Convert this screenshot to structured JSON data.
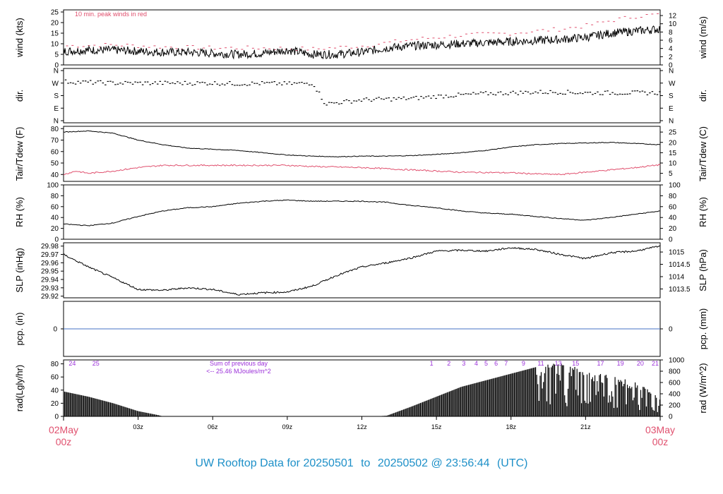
{
  "title_parts": {
    "prefix": "UW Rooftop Data for",
    "start": "20250501",
    "to": "to",
    "end": "20250502 @ 23:56:44",
    "tz": "(UTC)"
  },
  "colors": {
    "text": "#000000",
    "accent": "#e0506e",
    "blue": "#4472c4",
    "purple": "#9b30d9",
    "title": "#1e90c8"
  },
  "x_axis": {
    "start_label": "02May",
    "start_sub": "00z",
    "end_label": "03May",
    "end_sub": "00z",
    "ticks": [
      {
        "hour": 3,
        "label": "03z"
      },
      {
        "hour": 6,
        "label": "06z"
      },
      {
        "hour": 9,
        "label": "09z"
      },
      {
        "hour": 12,
        "label": "12z"
      },
      {
        "hour": 15,
        "label": "15z"
      },
      {
        "hour": 18,
        "label": "18z"
      },
      {
        "hour": 21,
        "label": "21z"
      }
    ]
  },
  "panels": {
    "wind": {
      "ylabel": "wind (kts)",
      "ylabel_right": "wind (m/s)",
      "note": "10 min. peak winds in red",
      "ylim": [
        0,
        26
      ],
      "yticks": [
        0,
        5,
        10,
        15,
        20,
        25
      ],
      "right_ticks": [
        0,
        2,
        4,
        6,
        8,
        10,
        12
      ]
    },
    "dir": {
      "ylabel": "dir.",
      "ylabel_right": "dir.",
      "ticks": [
        "N",
        "W",
        "S",
        "E",
        "N"
      ]
    },
    "temp": {
      "ylabel": "Tair/Tdew (F)",
      "ylabel_right": "Tair/Tdew (C)",
      "ylim": [
        34,
        82
      ],
      "yticks": [
        40,
        50,
        60,
        70,
        80
      ],
      "right_ticks": [
        5,
        10,
        15,
        20,
        25
      ]
    },
    "rh": {
      "ylabel": "RH (%)",
      "ylabel_right": "RH (%)",
      "ylim": [
        0,
        100
      ],
      "yticks": [
        0,
        20,
        40,
        60,
        80,
        100
      ],
      "right_ticks": [
        0,
        20,
        40,
        60,
        80,
        100
      ]
    },
    "slp": {
      "ylabel": "SLP (inHg)",
      "ylabel_right": "SLP (hPa)",
      "ylim": [
        29.918,
        29.984
      ],
      "yticks": [
        "29.92",
        "29.93",
        "29.94",
        "29.95",
        "29.96",
        "29.97",
        "29.98"
      ],
      "right_ticks": [
        "1013.5",
        "1014",
        "1014.5",
        "1015"
      ]
    },
    "pcp": {
      "ylabel": "pcp. (in)",
      "ylabel_right": "pcp. (mm)",
      "left_tick": "0",
      "right_tick": "0"
    },
    "rad": {
      "ylabel": "rad(Lgly/hr)",
      "ylabel_right": "rad (W/m^2)",
      "ylim": [
        0,
        86
      ],
      "yticks": [
        0,
        20,
        40,
        60,
        80
      ],
      "right_ticks": [
        0,
        200,
        400,
        600,
        800,
        1000
      ],
      "sum_label": "Sum of previous day",
      "sum_value": "<-- 25.46 MJoules/m^2"
    }
  },
  "chart_data": {
    "type": "line",
    "x_unit": "hour UTC",
    "wind_kts": [
      [
        0,
        6.5
      ],
      [
        1,
        7
      ],
      [
        2,
        7
      ],
      [
        3,
        6.5
      ],
      [
        4,
        6
      ],
      [
        5,
        6
      ],
      [
        6,
        5.5
      ],
      [
        7,
        5
      ],
      [
        8,
        5.5
      ],
      [
        9,
        7
      ],
      [
        10,
        5
      ],
      [
        11,
        5
      ],
      [
        12,
        6
      ],
      [
        13,
        8
      ],
      [
        14,
        9
      ],
      [
        15,
        9.5
      ],
      [
        16,
        10
      ],
      [
        17,
        10.5
      ],
      [
        18,
        11
      ],
      [
        19,
        11.5
      ],
      [
        20,
        12
      ],
      [
        21,
        13
      ],
      [
        22,
        15
      ],
      [
        23,
        16
      ],
      [
        24,
        17
      ]
    ],
    "wind_peak_kts": [
      [
        0,
        9
      ],
      [
        2,
        9.5
      ],
      [
        4,
        8.5
      ],
      [
        6,
        8
      ],
      [
        8,
        8
      ],
      [
        10,
        7.5
      ],
      [
        12,
        9
      ],
      [
        14,
        12
      ],
      [
        16,
        14
      ],
      [
        18,
        15
      ],
      [
        20,
        17
      ],
      [
        21,
        18.5
      ],
      [
        22,
        21
      ],
      [
        23,
        23
      ],
      [
        24,
        24
      ]
    ],
    "dir_deg": [
      [
        0,
        280
      ],
      [
        2,
        270
      ],
      [
        4,
        270
      ],
      [
        6,
        270
      ],
      [
        7,
        265
      ],
      [
        8,
        268
      ],
      [
        9,
        265
      ],
      [
        10,
        270
      ],
      [
        10.5,
        120
      ],
      [
        11,
        130
      ],
      [
        12,
        150
      ],
      [
        13,
        155
      ],
      [
        14,
        160
      ],
      [
        15,
        175
      ],
      [
        16,
        185
      ],
      [
        17,
        195
      ],
      [
        18,
        200
      ],
      [
        19,
        205
      ],
      [
        20,
        205
      ],
      [
        21,
        200
      ],
      [
        22,
        200
      ],
      [
        23,
        200
      ],
      [
        24,
        200
      ]
    ],
    "tair_F": [
      [
        0,
        77
      ],
      [
        1,
        78
      ],
      [
        2,
        76
      ],
      [
        3,
        70
      ],
      [
        4,
        66
      ],
      [
        5,
        63
      ],
      [
        6,
        62
      ],
      [
        7,
        61
      ],
      [
        8,
        59
      ],
      [
        9,
        57
      ],
      [
        10,
        56
      ],
      [
        11,
        55.5
      ],
      [
        12,
        56
      ],
      [
        13,
        56
      ],
      [
        14,
        56.5
      ],
      [
        15,
        57.5
      ],
      [
        16,
        59
      ],
      [
        17,
        61
      ],
      [
        18,
        64
      ],
      [
        19,
        66
      ],
      [
        20,
        67
      ],
      [
        21,
        67.5
      ],
      [
        22,
        68
      ],
      [
        23,
        67
      ],
      [
        24,
        66
      ]
    ],
    "tdew_F": [
      [
        0,
        40
      ],
      [
        0.5,
        43
      ],
      [
        1,
        41
      ],
      [
        2,
        43
      ],
      [
        3,
        46
      ],
      [
        4,
        48
      ],
      [
        6,
        48
      ],
      [
        8,
        48
      ],
      [
        9,
        48
      ],
      [
        10,
        47
      ],
      [
        12,
        46
      ],
      [
        13,
        45
      ],
      [
        14,
        44
      ],
      [
        15,
        43
      ],
      [
        16,
        42
      ],
      [
        18,
        41.5
      ],
      [
        19,
        40.5
      ],
      [
        20,
        40
      ],
      [
        21,
        42
      ],
      [
        22,
        44
      ],
      [
        23,
        46
      ],
      [
        24,
        48.5
      ]
    ],
    "rh_pct": [
      [
        0,
        28
      ],
      [
        1,
        25
      ],
      [
        2,
        30
      ],
      [
        3,
        42
      ],
      [
        4,
        52
      ],
      [
        5,
        58
      ],
      [
        6,
        60
      ],
      [
        7,
        66
      ],
      [
        8,
        70
      ],
      [
        9,
        72
      ],
      [
        10,
        70
      ],
      [
        11,
        70
      ],
      [
        12,
        70
      ],
      [
        13,
        68
      ],
      [
        14,
        62
      ],
      [
        15,
        58
      ],
      [
        16,
        52
      ],
      [
        17,
        48
      ],
      [
        18,
        46
      ],
      [
        19,
        42
      ],
      [
        20,
        38
      ],
      [
        21,
        35
      ],
      [
        22,
        40
      ],
      [
        23,
        46
      ],
      [
        24,
        52
      ]
    ],
    "slp_inHg": [
      [
        0,
        29.97
      ],
      [
        1,
        29.955
      ],
      [
        2,
        29.942
      ],
      [
        3,
        29.928
      ],
      [
        4,
        29.927
      ],
      [
        5,
        29.93
      ],
      [
        6,
        29.928
      ],
      [
        7,
        29.922
      ],
      [
        8,
        29.924
      ],
      [
        9,
        29.925
      ],
      [
        10,
        29.932
      ],
      [
        11,
        29.945
      ],
      [
        12,
        29.955
      ],
      [
        13,
        29.96
      ],
      [
        14,
        29.966
      ],
      [
        15,
        29.974
      ],
      [
        16,
        29.975
      ],
      [
        17,
        29.974
      ],
      [
        18,
        29.978
      ],
      [
        19,
        29.976
      ],
      [
        20,
        29.97
      ],
      [
        21,
        29.965
      ],
      [
        22,
        29.972
      ],
      [
        23,
        29.974
      ],
      [
        24,
        29.98
      ]
    ],
    "pcp_in": [
      [
        0,
        0
      ],
      [
        24,
        0
      ]
    ],
    "rad_lgly_hr": [
      [
        0,
        38
      ],
      [
        1,
        30
      ],
      [
        2,
        20
      ],
      [
        3,
        8
      ],
      [
        3.8,
        2
      ],
      [
        4,
        0
      ],
      [
        12.5,
        0
      ],
      [
        13,
        1
      ],
      [
        14,
        15
      ],
      [
        15,
        30
      ],
      [
        16,
        45
      ],
      [
        17,
        55
      ],
      [
        18,
        65
      ],
      [
        19,
        75
      ],
      [
        20,
        78
      ],
      [
        21,
        70
      ],
      [
        22,
        60
      ],
      [
        23,
        50
      ],
      [
        24,
        30
      ]
    ],
    "rad_hour_labels": [
      {
        "x": 0.35,
        "label": "24"
      },
      {
        "x": 1.3,
        "label": "25"
      },
      {
        "x": 14.8,
        "label": "1"
      },
      {
        "x": 15.5,
        "label": "2"
      },
      {
        "x": 16.1,
        "label": "3"
      },
      {
        "x": 16.6,
        "label": "4"
      },
      {
        "x": 17.0,
        "label": "5"
      },
      {
        "x": 17.4,
        "label": "6"
      },
      {
        "x": 17.8,
        "label": "7"
      },
      {
        "x": 18.5,
        "label": "9"
      },
      {
        "x": 19.2,
        "label": "11"
      },
      {
        "x": 19.9,
        "label": "13"
      },
      {
        "x": 20.6,
        "label": "15"
      },
      {
        "x": 21.6,
        "label": "17"
      },
      {
        "x": 22.4,
        "label": "19"
      },
      {
        "x": 23.2,
        "label": "20"
      },
      {
        "x": 23.8,
        "label": "21"
      }
    ]
  }
}
